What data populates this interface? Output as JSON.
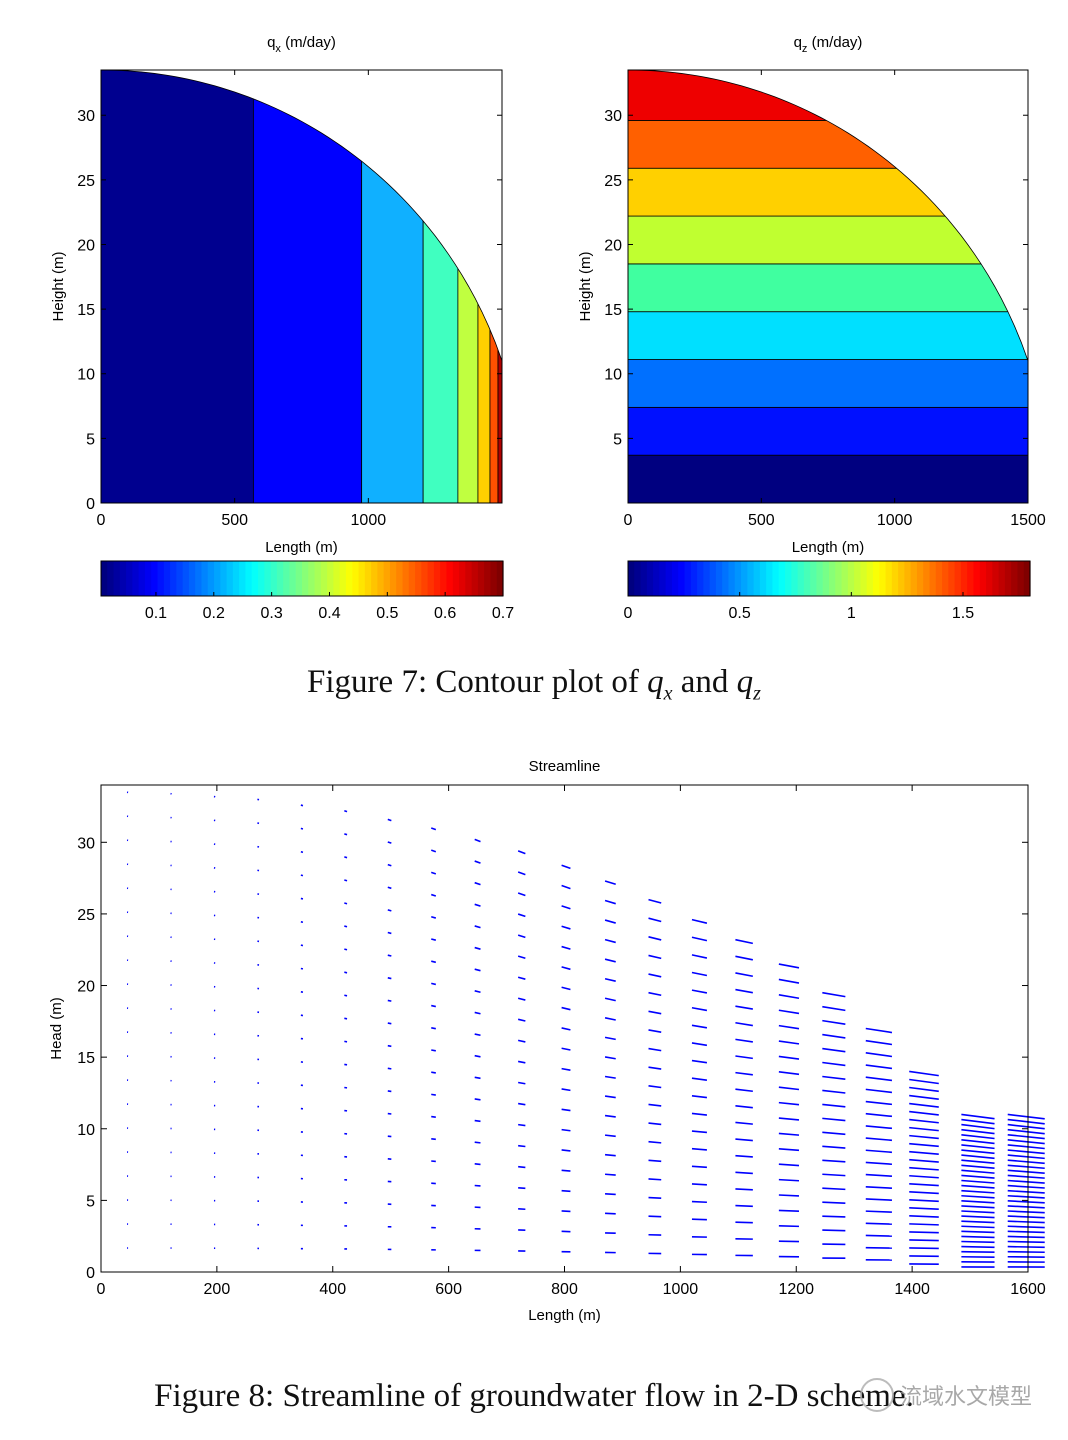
{
  "figure7": {
    "caption_prefix": "Figure 7: Contour plot of ",
    "caption_v1": "q",
    "caption_s1": "x",
    "caption_mid": " and ",
    "caption_v2": "q",
    "caption_s2": "z"
  },
  "figure8": {
    "caption": "Figure 8: Streamline of groundwater flow in 2-D scheme."
  },
  "watermark": {
    "text": "流域水文模型",
    "icon": "wechat-icon"
  },
  "colors": {
    "axis": "#000000",
    "arrow": "#0000ff"
  },
  "chart_data": [
    {
      "type": "heatmap",
      "title_var": "q",
      "title_sub": "x",
      "title_unit": " (m/day)",
      "xlabel": "Length (m)",
      "ylabel": "Height (m)",
      "xlim": [
        0,
        1500
      ],
      "ylim": [
        0,
        33.5
      ],
      "xticks": [
        0,
        500,
        1000
      ],
      "yticks": [
        0,
        5,
        10,
        15,
        20,
        25,
        30
      ],
      "boundary": "head profile h(x) with h(0)=33.5 m, h(1500)=11 m",
      "bands_x": [
        0,
        570,
        975,
        1205,
        1335,
        1410,
        1455,
        1485,
        1500
      ],
      "band_colors": [
        "#00008f",
        "#0000ff",
        "#10b0ff",
        "#40ffc0",
        "#c0ff40",
        "#ffd000",
        "#ff5000",
        "#b00000"
      ],
      "colorbar_ticks": [
        0.1,
        0.2,
        0.3,
        0.4,
        0.5,
        0.6,
        0.7
      ],
      "colorbar_range": [
        0.005,
        0.7
      ]
    },
    {
      "type": "heatmap",
      "title_var": "q",
      "title_sub": "z",
      "title_unit": " (m/day)",
      "xlabel": "Length (m)",
      "ylabel": "Height (m)",
      "xlim": [
        0,
        1500
      ],
      "ylim": [
        0,
        33.5
      ],
      "xticks": [
        0,
        500,
        1000,
        1500
      ],
      "yticks": [
        5,
        10,
        15,
        20,
        25,
        30
      ],
      "bands_z": [
        0,
        3.7,
        7.4,
        11.1,
        14.8,
        18.5,
        22.2,
        25.9,
        29.6,
        33.5
      ],
      "band_colors": [
        "#000080",
        "#0010ff",
        "#0070ff",
        "#00e0ff",
        "#40ffa0",
        "#c0ff30",
        "#ffd000",
        "#ff6000",
        "#ee0000"
      ],
      "colorbar_ticks": [
        0,
        0.5,
        1,
        1.5
      ],
      "colorbar_range": [
        0,
        1.8
      ]
    },
    {
      "type": "quiver",
      "title": "Streamline",
      "xlabel": "Length (m)",
      "ylabel": "Head (m)",
      "xlim": [
        0,
        1600
      ],
      "ylim": [
        0,
        34
      ],
      "xticks": [
        0,
        200,
        400,
        600,
        800,
        1000,
        1200,
        1400,
        1600
      ],
      "yticks": [
        0,
        5,
        10,
        15,
        20,
        25,
        30
      ],
      "columns_x": [
        0,
        75,
        150,
        225,
        300,
        375,
        450,
        525,
        600,
        675,
        750,
        825,
        900,
        975,
        1050,
        1125,
        1200,
        1275,
        1350,
        1440,
        1520
      ],
      "column_tops": [
        33.5,
        33.4,
        33.2,
        33.0,
        32.6,
        32.2,
        31.6,
        31.0,
        30.2,
        29.4,
        28.4,
        27.3,
        26.0,
        24.6,
        23.2,
        21.5,
        19.5,
        17.0,
        14.0,
        11.0,
        11.0
      ],
      "note": "arrow length increases with x; direction roughly horizontal, pointing slightly downward near the top"
    }
  ]
}
